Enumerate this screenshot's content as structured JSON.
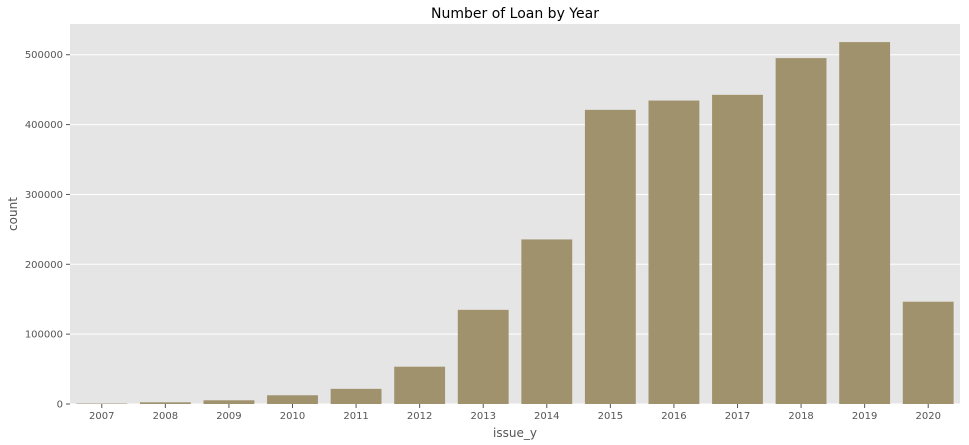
{
  "chart_data": {
    "type": "bar",
    "title": "Number of Loan by Year",
    "xlabel": "issue_y",
    "ylabel": "count",
    "categories": [
      "2007",
      "2008",
      "2009",
      "2010",
      "2011",
      "2012",
      "2013",
      "2014",
      "2015",
      "2016",
      "2017",
      "2018",
      "2019",
      "2020"
    ],
    "values": [
      600,
      2400,
      5300,
      12500,
      21700,
      53400,
      134800,
      235600,
      421100,
      434400,
      442600,
      495200,
      518100,
      146400
    ],
    "ylim": [
      0,
      544000
    ],
    "yticks": [
      0,
      100000,
      200000,
      300000,
      400000,
      500000
    ],
    "ytick_labels": [
      "0",
      "100000",
      "200000",
      "300000",
      "400000",
      "500000"
    ],
    "grid": true,
    "bar_color": "#a0926d",
    "background_color": "#e5e5e5",
    "grid_color": "#ffffff"
  }
}
